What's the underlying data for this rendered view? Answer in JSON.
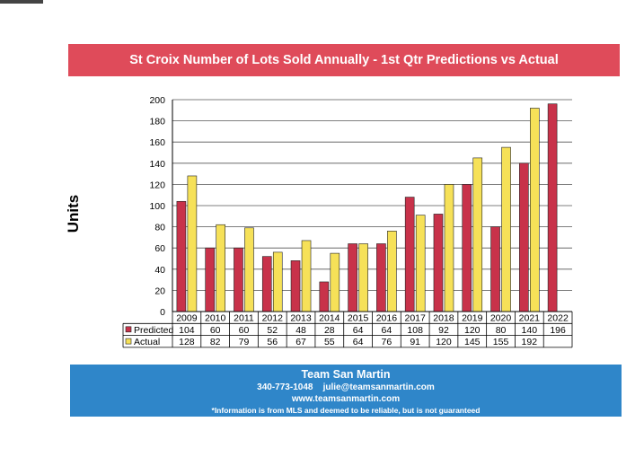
{
  "title": "St Croix Number of Lots Sold Annually - 1st Qtr Predictions vs Actual",
  "footer": {
    "name": "Team San Martin",
    "phone": "340-773-1048",
    "email": "julie@teamsanmartin.com",
    "website": "www.teamsanmartin.com",
    "disclaimer": "*Information is from MLS and deemed to be reliable, but is not guaranteed"
  },
  "colors": {
    "predicted": "#c8324a",
    "actual": "#f6e158",
    "title_banner": "#df4b5a",
    "footer_banner": "#2f86c9"
  },
  "chart_data": {
    "type": "bar",
    "ylabel": "Units",
    "ylim": [
      0,
      200
    ],
    "yticks": [
      0,
      20,
      40,
      60,
      80,
      100,
      120,
      140,
      160,
      180,
      200
    ],
    "grid": true,
    "legend_placement": "data-table-left",
    "categories": [
      "2009",
      "2010",
      "2011",
      "2012",
      "2013",
      "2014",
      "2015",
      "2016",
      "2017",
      "2018",
      "2019",
      "2020",
      "2021",
      "2022"
    ],
    "series": [
      {
        "name": "Predicted",
        "values": [
          104,
          60,
          60,
          52,
          48,
          28,
          64,
          64,
          108,
          92,
          120,
          80,
          140,
          196
        ]
      },
      {
        "name": "Actual",
        "values": [
          128,
          82,
          79,
          56,
          67,
          55,
          64,
          76,
          91,
          120,
          145,
          155,
          192,
          null
        ]
      }
    ]
  }
}
